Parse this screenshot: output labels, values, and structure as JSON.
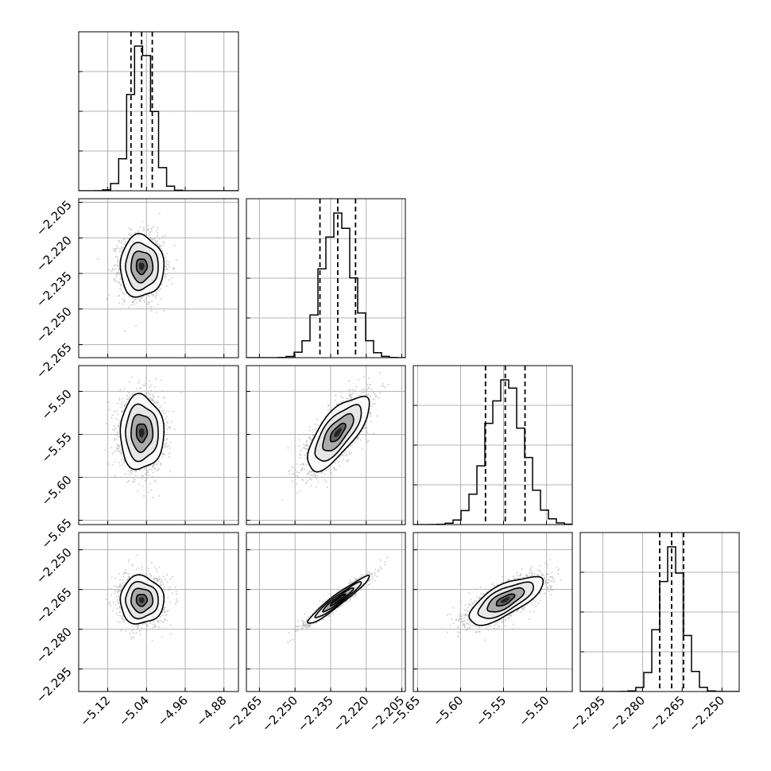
{
  "chart_data": {
    "type": "corner",
    "parameters": [
      {
        "ticks": [
          -5.12,
          -5.04,
          -4.96,
          -4.88
        ],
        "tick_labels": [
          "−5.12",
          "−5.04",
          "−4.96",
          "−4.88"
        ],
        "range": [
          -5.18,
          -4.85
        ],
        "mean": -5.05,
        "sigma": 0.0225,
        "quantiles": [
          -5.072,
          -5.05,
          -5.028
        ]
      },
      {
        "ticks": [
          -2.265,
          -2.25,
          -2.235,
          -2.22,
          -2.205
        ],
        "tick_labels": [
          "−2.265",
          "−2.250",
          "−2.235",
          "−2.220",
          "−2.205"
        ],
        "range": [
          -2.2705,
          -2.2035
        ],
        "mean": -2.232,
        "sigma": 0.0065,
        "quantiles": [
          -2.2395,
          -2.232,
          -2.2245
        ]
      },
      {
        "ticks": [
          -5.65,
          -5.6,
          -5.55,
          -5.5
        ],
        "tick_labels": [
          "−5.65",
          "−5.60",
          "−5.55",
          "−5.50"
        ],
        "range": [
          -5.655,
          -5.47
        ],
        "mean": -5.548,
        "sigma": 0.0215,
        "quantiles": [
          -5.571,
          -5.548,
          -5.525
        ]
      },
      {
        "ticks": [
          -2.295,
          -2.28,
          -2.265,
          -2.25
        ],
        "tick_labels": [
          "−2.295",
          "−2.280",
          "−2.265",
          "−2.250"
        ],
        "range": [
          -2.3035,
          -2.2435
        ],
        "mean": -2.269,
        "sigma": 0.0045,
        "quantiles": [
          -2.2735,
          -2.269,
          -2.2645
        ]
      }
    ],
    "correlations": [
      {
        "pair": [
          1,
          0
        ],
        "rho": 0.0
      },
      {
        "pair": [
          2,
          0
        ],
        "rho": 0.0
      },
      {
        "pair": [
          2,
          1
        ],
        "rho": 0.72
      },
      {
        "pair": [
          3,
          0
        ],
        "rho": 0.0
      },
      {
        "pair": [
          3,
          1
        ],
        "rho": 0.96
      },
      {
        "pair": [
          3,
          2
        ],
        "rho": 0.72
      }
    ],
    "grid": true,
    "quantile_lines": "dashed",
    "contour_levels_sigma": [
      0.5,
      1.0,
      1.5,
      2.0
    ]
  }
}
